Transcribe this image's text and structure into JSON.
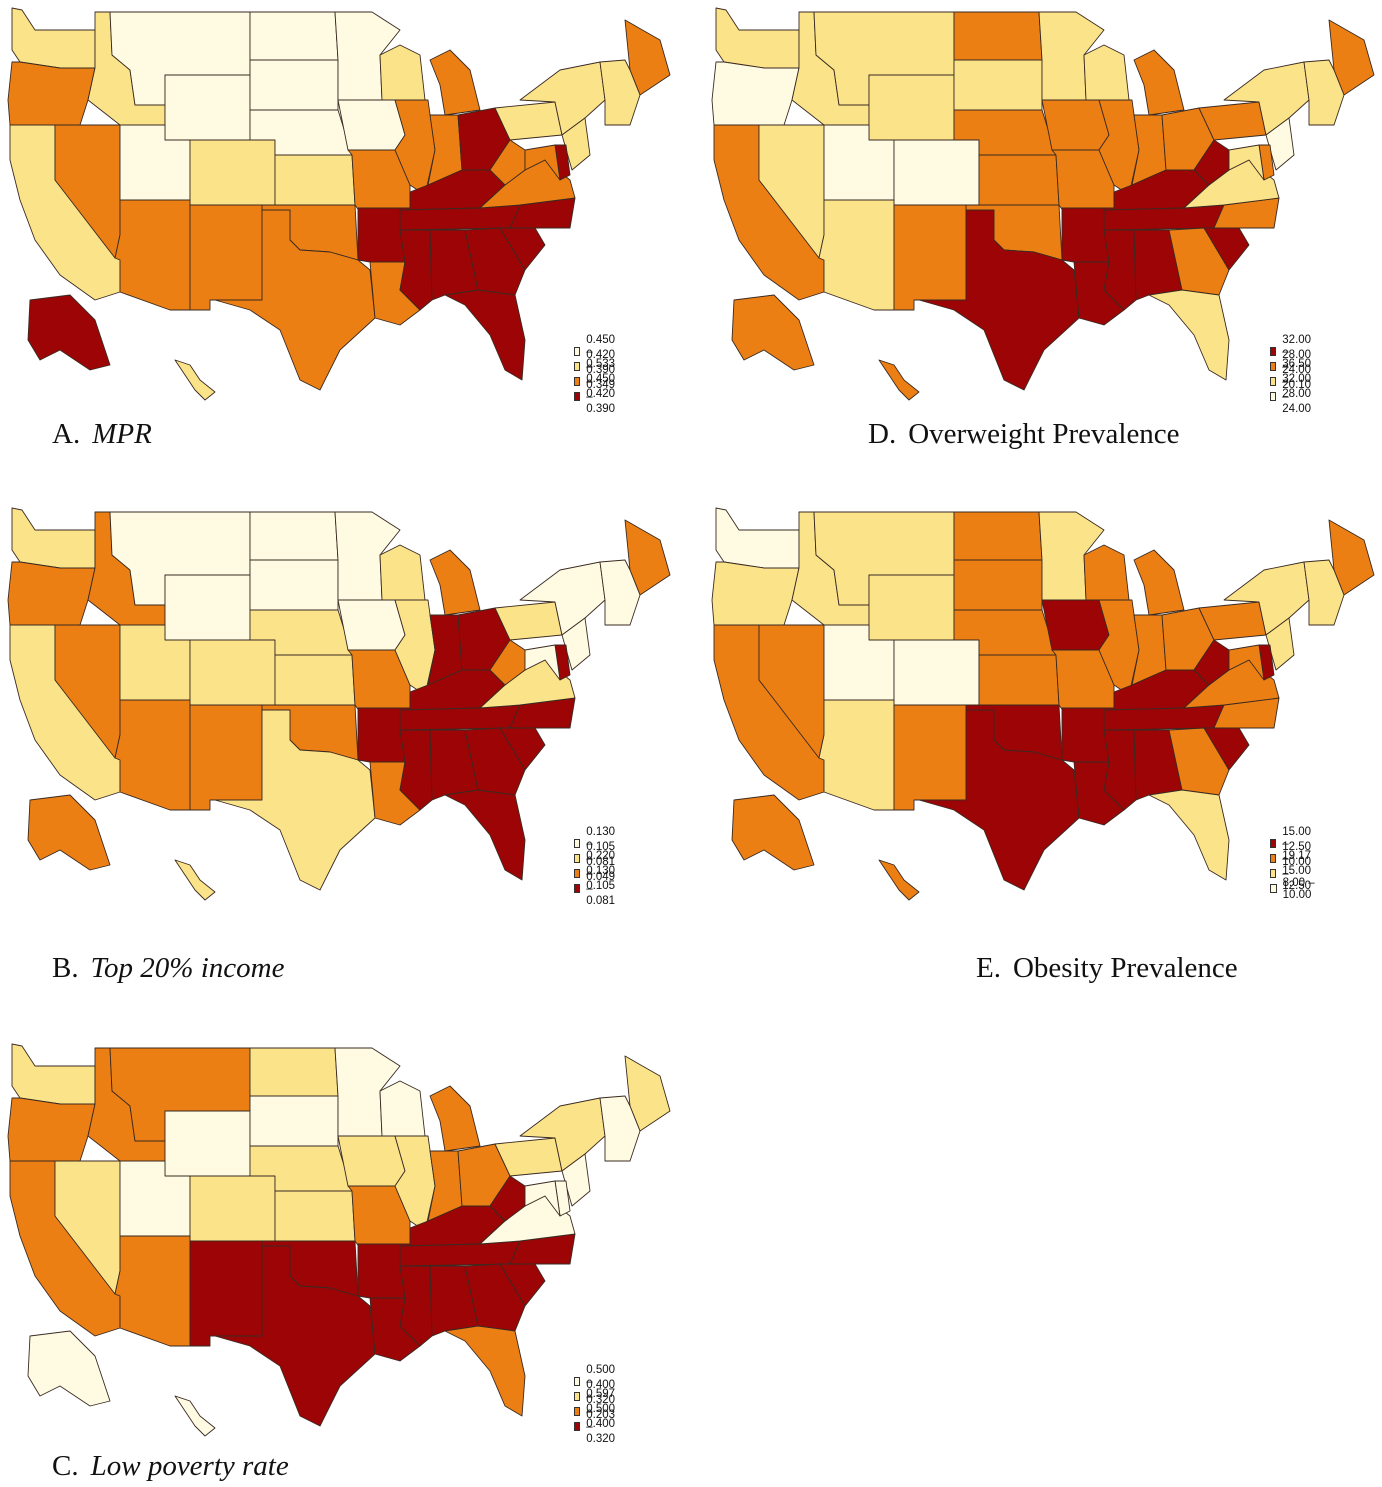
{
  "colors": {
    "light": "#fffbe3",
    "yellow": "#fbe38a",
    "orange": "#ec7f13",
    "dark": "#9c0405",
    "border": "#3a2a22"
  },
  "panels": [
    {
      "id": "A",
      "caption_label": "A.",
      "caption_text": "MPR",
      "caption_italic": true,
      "legend": [
        {
          "range": "0.450 – 0.533",
          "color": "light"
        },
        {
          "range": "0.420 – 0.450",
          "color": "yellow"
        },
        {
          "range": "0.390 – 0.420",
          "color": "orange"
        },
        {
          "range": "0.349 – 0.390",
          "color": "dark"
        }
      ],
      "states": {
        "WA": "yellow",
        "OR": "orange",
        "CA": "yellow",
        "NV": "orange",
        "ID": "yellow",
        "MT": "light",
        "WY": "light",
        "UT": "light",
        "CO": "yellow",
        "AZ": "orange",
        "NM": "orange",
        "ND": "light",
        "SD": "light",
        "NE": "light",
        "KS": "yellow",
        "OK": "orange",
        "TX": "orange",
        "MN": "light",
        "IA": "light",
        "MO": "orange",
        "AR": "dark",
        "LA": "orange",
        "WI": "yellow",
        "IL": "orange",
        "MI": "orange",
        "IN": "orange",
        "OH": "dark",
        "KY": "dark",
        "TN": "dark",
        "MS": "dark",
        "AL": "dark",
        "GA": "dark",
        "FL": "dark",
        "SC": "dark",
        "NC": "dark",
        "VA": "orange",
        "WV": "orange",
        "PA": "yellow",
        "NY": "yellow",
        "ME": "orange",
        "NE_SMALL": "yellow",
        "NJ": "yellow",
        "DE": "dark",
        "MD": "orange",
        "AK": "dark",
        "HI": "yellow"
      }
    },
    {
      "id": "B",
      "caption_label": "B.",
      "caption_text": "Top 20% income",
      "caption_italic": true,
      "legend": [
        {
          "range": "0.130 – 0.220",
          "color": "light"
        },
        {
          "range": "0.105 – 0.130",
          "color": "yellow"
        },
        {
          "range": "0.081 – 0.105",
          "color": "orange"
        },
        {
          "range": "0.049 – 0.081",
          "color": "dark"
        }
      ],
      "states": {
        "WA": "yellow",
        "OR": "orange",
        "CA": "yellow",
        "NV": "orange",
        "ID": "orange",
        "MT": "light",
        "WY": "light",
        "UT": "yellow",
        "CO": "yellow",
        "AZ": "orange",
        "NM": "orange",
        "ND": "light",
        "SD": "light",
        "NE": "yellow",
        "KS": "yellow",
        "OK": "orange",
        "TX": "yellow",
        "MN": "light",
        "IA": "light",
        "MO": "orange",
        "AR": "dark",
        "LA": "orange",
        "WI": "yellow",
        "IL": "yellow",
        "MI": "orange",
        "IN": "dark",
        "OH": "dark",
        "KY": "dark",
        "TN": "dark",
        "MS": "dark",
        "AL": "dark",
        "GA": "dark",
        "FL": "dark",
        "SC": "dark",
        "NC": "dark",
        "VA": "yellow",
        "WV": "orange",
        "PA": "yellow",
        "NY": "light",
        "ME": "orange",
        "NE_SMALL": "light",
        "NJ": "light",
        "DE": "dark",
        "MD": "light",
        "AK": "orange",
        "HI": "yellow"
      }
    },
    {
      "id": "C",
      "caption_label": "C.",
      "caption_text": "Low poverty rate",
      "caption_italic": true,
      "legend": [
        {
          "range": "0.500 – 0.597",
          "color": "light"
        },
        {
          "range": "0.400 – 0.500",
          "color": "yellow"
        },
        {
          "range": "0.320 – 0.400",
          "color": "orange"
        },
        {
          "range": "0.203 – 0.320",
          "color": "dark"
        }
      ],
      "states": {
        "WA": "yellow",
        "OR": "orange",
        "CA": "orange",
        "NV": "yellow",
        "ID": "orange",
        "MT": "orange",
        "WY": "light",
        "UT": "light",
        "CO": "yellow",
        "AZ": "orange",
        "NM": "dark",
        "ND": "yellow",
        "SD": "light",
        "NE": "yellow",
        "KS": "yellow",
        "OK": "dark",
        "TX": "dark",
        "MN": "light",
        "IA": "yellow",
        "MO": "orange",
        "AR": "dark",
        "LA": "dark",
        "WI": "light",
        "IL": "yellow",
        "MI": "orange",
        "IN": "orange",
        "OH": "orange",
        "KY": "dark",
        "TN": "dark",
        "MS": "dark",
        "AL": "dark",
        "GA": "dark",
        "FL": "orange",
        "SC": "dark",
        "NC": "dark",
        "VA": "light",
        "WV": "dark",
        "PA": "yellow",
        "NY": "yellow",
        "ME": "yellow",
        "NE_SMALL": "light",
        "NJ": "light",
        "DE": "light",
        "MD": "light",
        "AK": "light",
        "HI": "light"
      }
    },
    {
      "id": "D",
      "caption_label": "D.",
      "caption_text": "Overweight Prevalence",
      "caption_italic": false,
      "legend": [
        {
          "range": "32.00 – 36.50",
          "color": "dark"
        },
        {
          "range": "28.00 – 32.00",
          "color": "orange"
        },
        {
          "range": "24.00 – 28.00",
          "color": "yellow"
        },
        {
          "range": "20.10 – 24.00",
          "color": "light"
        }
      ],
      "states": {
        "WA": "yellow",
        "OR": "light",
        "CA": "orange",
        "NV": "yellow",
        "ID": "yellow",
        "MT": "yellow",
        "WY": "yellow",
        "UT": "light",
        "CO": "light",
        "AZ": "yellow",
        "NM": "orange",
        "ND": "orange",
        "SD": "yellow",
        "NE": "orange",
        "KS": "orange",
        "OK": "orange",
        "TX": "dark",
        "MN": "yellow",
        "IA": "orange",
        "MO": "orange",
        "AR": "dark",
        "LA": "dark",
        "WI": "yellow",
        "IL": "orange",
        "MI": "orange",
        "IN": "orange",
        "OH": "orange",
        "KY": "dark",
        "TN": "dark",
        "MS": "dark",
        "AL": "dark",
        "GA": "orange",
        "FL": "yellow",
        "SC": "dark",
        "NC": "orange",
        "VA": "yellow",
        "WV": "dark",
        "PA": "orange",
        "NY": "yellow",
        "ME": "orange",
        "NE_SMALL": "yellow",
        "NJ": "light",
        "DE": "orange",
        "MD": "yellow",
        "AK": "orange",
        "HI": "orange"
      }
    },
    {
      "id": "E",
      "caption_label": "E.",
      "caption_text": "Obesity Prevalence",
      "caption_italic": false,
      "legend": [
        {
          "range": "15.00 – 19.17",
          "color": "dark"
        },
        {
          "range": "12.50 – 15.00",
          "color": "orange"
        },
        {
          "range": "10.00 – 12.50",
          "color": "yellow"
        },
        {
          "range": "8.00 – 10.00",
          "color": "light"
        }
      ],
      "states": {
        "WA": "light",
        "OR": "yellow",
        "CA": "orange",
        "NV": "orange",
        "ID": "yellow",
        "MT": "yellow",
        "WY": "yellow",
        "UT": "light",
        "CO": "light",
        "AZ": "yellow",
        "NM": "orange",
        "ND": "orange",
        "SD": "orange",
        "NE": "orange",
        "KS": "orange",
        "OK": "dark",
        "TX": "dark",
        "MN": "yellow",
        "IA": "dark",
        "MO": "orange",
        "AR": "dark",
        "LA": "dark",
        "WI": "orange",
        "IL": "orange",
        "MI": "orange",
        "IN": "orange",
        "OH": "orange",
        "KY": "dark",
        "TN": "dark",
        "MS": "dark",
        "AL": "dark",
        "GA": "orange",
        "FL": "yellow",
        "SC": "dark",
        "NC": "orange",
        "VA": "orange",
        "WV": "dark",
        "PA": "orange",
        "NY": "yellow",
        "ME": "orange",
        "NE_SMALL": "yellow",
        "NJ": "yellow",
        "DE": "dark",
        "MD": "orange",
        "AK": "orange",
        "HI": "orange"
      }
    }
  ]
}
